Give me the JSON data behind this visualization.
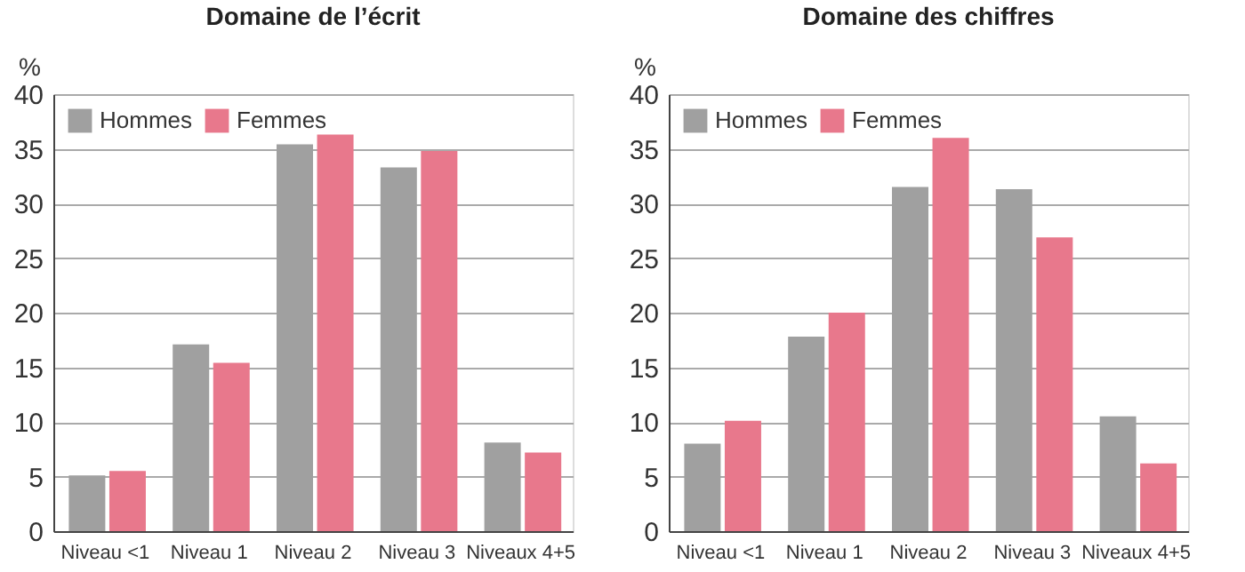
{
  "chart_data": [
    {
      "type": "bar",
      "title": "Domaine de l’écrit",
      "ylabel": "%",
      "categories": [
        "Niveau <1",
        "Niveau 1",
        "Niveau 2",
        "Niveau 3",
        "Niveaux 4+5"
      ],
      "ylim": [
        0,
        40
      ],
      "yticks": [
        0,
        5,
        10,
        15,
        20,
        25,
        30,
        35,
        40
      ],
      "grid": "y",
      "legend": "top left",
      "series": [
        {
          "name": "Hommes",
          "color": "#a0a0a0",
          "values": [
            5.1,
            17.1,
            35.4,
            33.3,
            8.1
          ]
        },
        {
          "name": "Femmes",
          "color": "#e8788c",
          "values": [
            5.5,
            15.4,
            36.3,
            34.8,
            7.2
          ]
        }
      ]
    },
    {
      "type": "bar",
      "title": "Domaine des chiffres",
      "ylabel": "%",
      "categories": [
        "Niveau <1",
        "Niveau 1",
        "Niveau 2",
        "Niveau 3",
        "Niveaux 4+5"
      ],
      "ylim": [
        0,
        40
      ],
      "yticks": [
        0,
        5,
        10,
        15,
        20,
        25,
        30,
        35,
        40
      ],
      "grid": "y",
      "legend": "top left",
      "series": [
        {
          "name": "Hommes",
          "color": "#a0a0a0",
          "values": [
            8.0,
            17.8,
            31.5,
            31.3,
            10.5
          ]
        },
        {
          "name": "Femmes",
          "color": "#e8788c",
          "values": [
            10.1,
            20.0,
            36.0,
            26.9,
            6.2
          ]
        }
      ]
    }
  ]
}
